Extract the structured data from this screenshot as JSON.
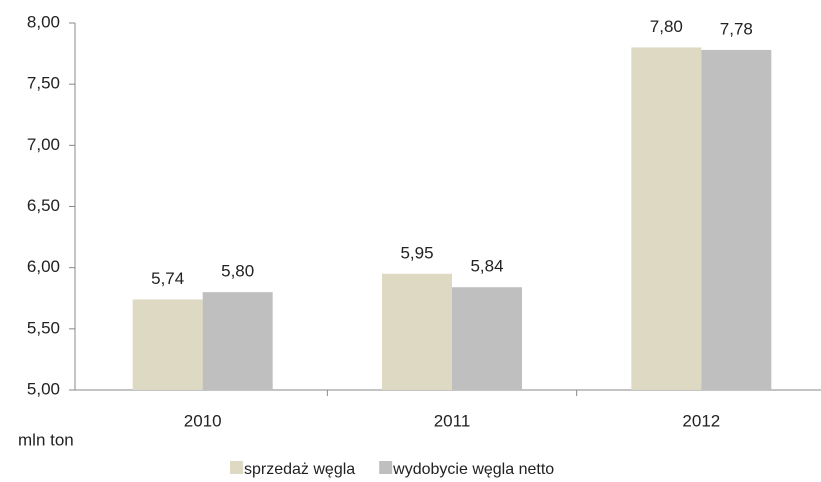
{
  "chart_data": {
    "type": "bar",
    "y_axis_label": "mln ton",
    "categories": [
      "2010",
      "2011",
      "2012"
    ],
    "series": [
      {
        "name": "sprzedaż węgla",
        "color": "#ddd9c3",
        "values": [
          5.74,
          5.95,
          7.8
        ],
        "value_labels": [
          "5,74",
          "5,95",
          "7,80"
        ]
      },
      {
        "name": "wydobycie węgla netto",
        "color": "#bfbfbf",
        "values": [
          5.8,
          5.84,
          7.78
        ],
        "value_labels": [
          "5,80",
          "5,84",
          "7,78"
        ]
      }
    ],
    "ylim": [
      5,
      8
    ],
    "yticks": [
      {
        "value": 5,
        "label": "5,00"
      },
      {
        "value": 5.5,
        "label": "5,50"
      },
      {
        "value": 6,
        "label": "6,00"
      },
      {
        "value": 6.5,
        "label": "6,50"
      },
      {
        "value": 7,
        "label": "7,00"
      },
      {
        "value": 7.5,
        "label": "7,50"
      },
      {
        "value": 8,
        "label": "8,00"
      }
    ],
    "grid": false,
    "legend": "bottom"
  }
}
